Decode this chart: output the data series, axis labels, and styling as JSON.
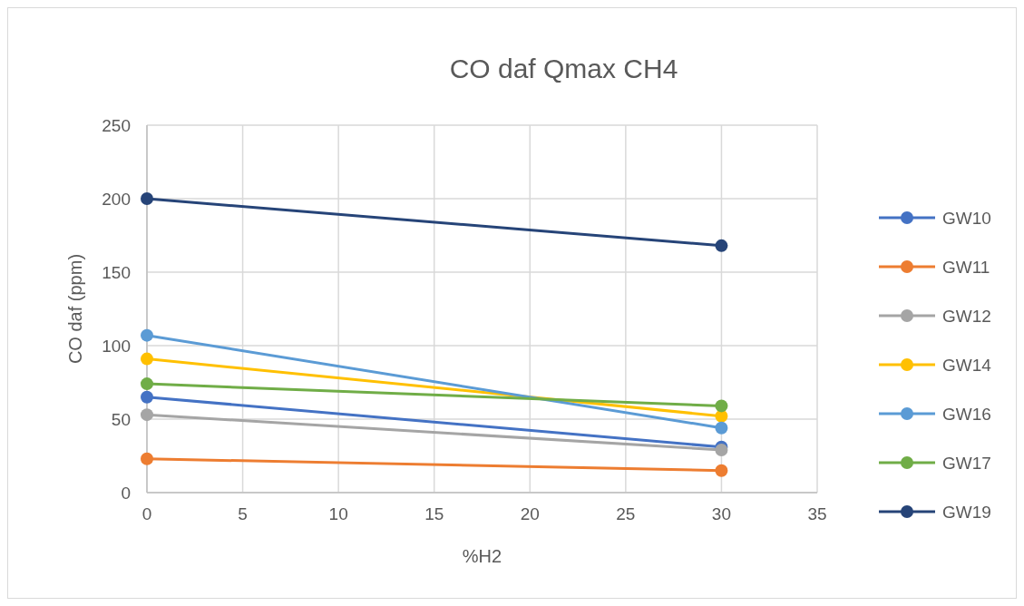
{
  "chart_data": {
    "type": "line",
    "title": "CO daf Qmax CH4",
    "xlabel": "%H2",
    "ylabel": "CO daf (ppm)",
    "x": [
      0,
      30
    ],
    "series": [
      {
        "name": "GW10",
        "color": "#4472c4",
        "values": [
          65,
          31
        ]
      },
      {
        "name": "GW11",
        "color": "#ed7d31",
        "values": [
          23,
          15
        ]
      },
      {
        "name": "GW12",
        "color": "#a5a5a5",
        "values": [
          53,
          29
        ]
      },
      {
        "name": "GW14",
        "color": "#ffc000",
        "values": [
          91,
          52
        ]
      },
      {
        "name": "GW16",
        "color": "#5b9bd5",
        "values": [
          107,
          44
        ]
      },
      {
        "name": "GW17",
        "color": "#70ad47",
        "values": [
          74,
          59
        ]
      },
      {
        "name": "GW19",
        "color": "#264478",
        "values": [
          200,
          168
        ]
      }
    ],
    "xlim": [
      0,
      35
    ],
    "xticks": [
      0,
      5,
      10,
      15,
      20,
      25,
      30,
      35
    ],
    "ylim": [
      0,
      250
    ],
    "yticks": [
      0,
      50,
      100,
      150,
      200,
      250
    ],
    "grid": true,
    "legend": "right",
    "marker": "circle",
    "line_style": "solid"
  }
}
